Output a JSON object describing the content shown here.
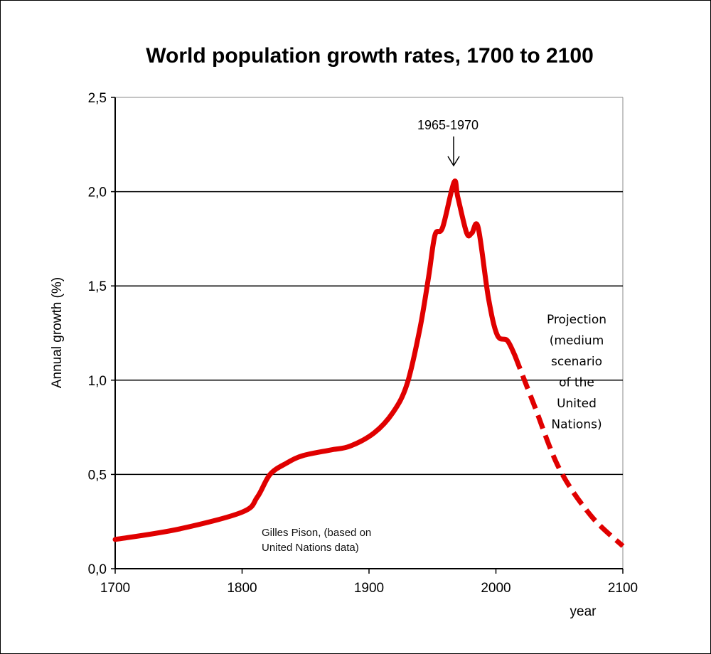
{
  "chart_data": {
    "type": "line",
    "title": "World population growth rates, 1700 to 2100",
    "xlabel": "year",
    "ylabel": "Annual growth  (%)",
    "xlim": [
      1700,
      2100
    ],
    "ylim": [
      0,
      2.5
    ],
    "xticks": [
      "1700",
      "1800",
      "1900",
      "2000",
      "2100"
    ],
    "yticks": [
      "0,0",
      "0,5",
      "1,0",
      "1,5",
      "2,0",
      "2,5"
    ],
    "grid": "horizontal",
    "line_color": "#e00000",
    "series": [
      {
        "style": "solid",
        "x": [
          1700,
          1750,
          1800,
          1812,
          1822,
          1835,
          1848,
          1870,
          1885,
          1904,
          1919,
          1930,
          1940,
          1947,
          1952,
          1958,
          1967,
          1970,
          1977,
          1981,
          1986,
          1994,
          2001,
          2009,
          2015
        ],
        "y": [
          0.155,
          0.21,
          0.3,
          0.38,
          0.5,
          0.56,
          0.6,
          0.63,
          0.65,
          0.72,
          0.83,
          0.98,
          1.27,
          1.55,
          1.77,
          1.81,
          2.05,
          1.97,
          1.78,
          1.78,
          1.81,
          1.44,
          1.24,
          1.21,
          1.13
        ]
      },
      {
        "style": "dashed",
        "x": [
          2015,
          2030,
          2050,
          2075,
          2100
        ],
        "y": [
          1.13,
          0.87,
          0.53,
          0.28,
          0.12
        ]
      }
    ],
    "annotations": {
      "peak": "1965-1970",
      "projection": [
        "Projection",
        "(medium",
        "scenario",
        "of the",
        "United",
        "Nations)"
      ],
      "source": [
        "Gilles Pison, (based on",
        "United Nations data)"
      ]
    }
  }
}
